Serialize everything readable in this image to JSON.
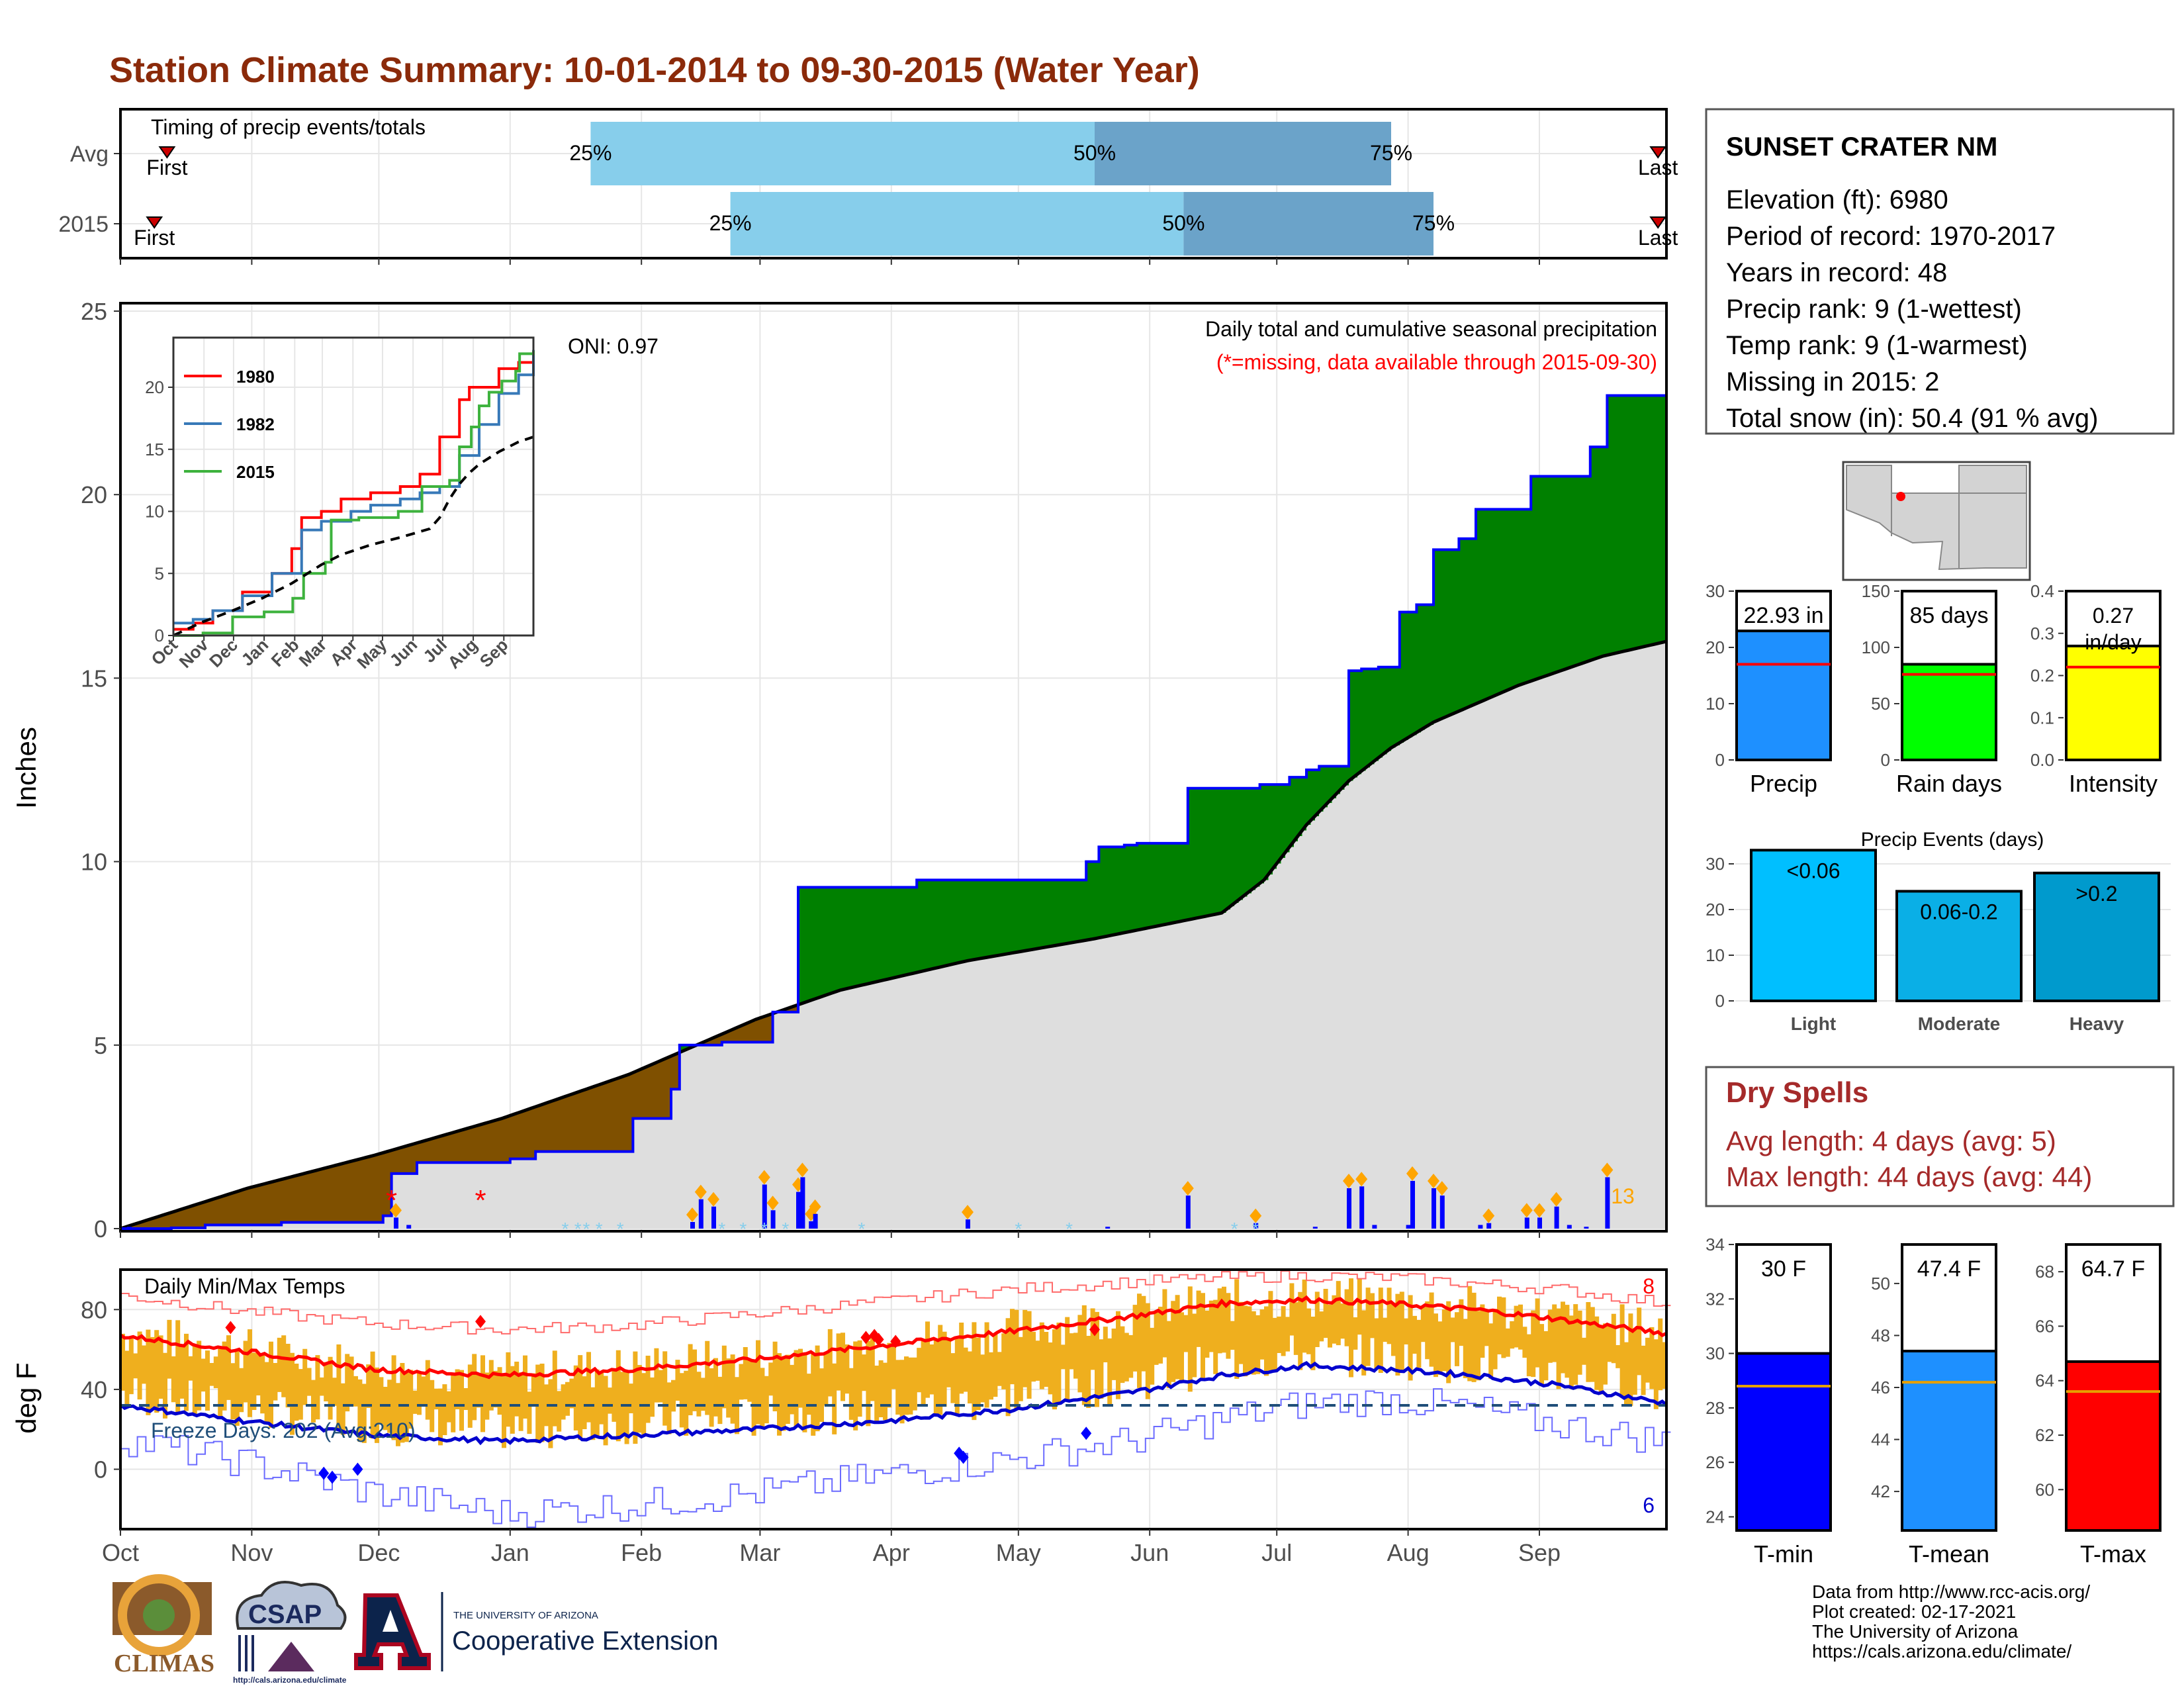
{
  "title": "Station Climate Summary: 10-01-2014 to 09-30-2015 (Water Year)",
  "colors": {
    "title": "#8B2A0A",
    "precip_light_bar": "#87CEEB",
    "precip_dark_bar": "#6BA3C9",
    "green_fill": "#008000",
    "brown_fill": "#7F5000",
    "avg_fill": "#DEDEDE",
    "blue_line": "#0000FF",
    "temp_bar": "#EFAF1E",
    "tmax_line": "#FF0000",
    "tmin_line": "#0000CD",
    "dry_spell_text": "#A52A2A",
    "missing": "#FF0000",
    "orange_marker": "#FFA500"
  },
  "timing_panel": {
    "label": "Timing of precip events/totals",
    "rows": [
      {
        "row_label": "Avg",
        "first_label": "First",
        "last_label": "Last",
        "p25_label": "25%",
        "p50_label": "50%",
        "p75_label": "75%",
        "first_doy": 11,
        "last_doy": 363,
        "p25_doy": 111,
        "p50_doy": 230,
        "p75_doy": 300
      },
      {
        "row_label": "2015",
        "first_label": "First",
        "last_label": "Last",
        "p25_label": "25%",
        "p50_label": "50%",
        "p75_label": "75%",
        "first_doy": 8,
        "last_doy": 363,
        "p25_doy": 144,
        "p50_doy": 251,
        "p75_doy": 310
      }
    ]
  },
  "station": {
    "name": "SUNSET CRATER NM",
    "lines": [
      "Elevation (ft): 6980",
      "Period of record: 1970-2017",
      "Years in record: 48",
      "Precip rank: 9 (1-wettest)",
      "Temp rank: 9 (1-warmest)",
      "Missing in 2015: 2",
      "Total snow (in): 50.4 (91 % avg)"
    ]
  },
  "chart_data": [
    {
      "id": "cumulative_precip",
      "type": "area",
      "ylabel": "Inches",
      "ylim": [
        0,
        25
      ],
      "yticks": [
        "0",
        "5",
        "10",
        "15",
        "20",
        "25"
      ],
      "annotation_title": "Daily total and cumulative seasonal precipitation",
      "annotation_missing": "(*=missing, data available through 2015-09-30)",
      "oni_label": "ONI: 0.97",
      "count_label": "13",
      "series": [
        {
          "name": "2015 cumulative",
          "x_doy": [
            0,
            12,
            20,
            38,
            62,
            64,
            70,
            92,
            98,
            121,
            130,
            132,
            137,
            142,
            154,
            160,
            176,
            188,
            210,
            228,
            231,
            237,
            240,
            242,
            252,
            269,
            276,
            280,
            283,
            290,
            293,
            297,
            302,
            306,
            310,
            316,
            320,
            330,
            333,
            347,
            351,
            365
          ],
          "y": [
            0,
            0.02,
            0.1,
            0.17,
            0.35,
            1.5,
            1.8,
            1.9,
            2.1,
            3.0,
            3.8,
            5.0,
            5.0,
            5.08,
            5.9,
            9.3,
            9.3,
            9.5,
            9.5,
            10.0,
            10.4,
            10.45,
            10.5,
            10.5,
            12.0,
            12.1,
            12.3,
            12.5,
            12.6,
            15.2,
            15.25,
            15.3,
            16.8,
            17.0,
            18.5,
            18.8,
            19.6,
            19.6,
            20.5,
            21.3,
            22.7,
            22.93
          ]
        },
        {
          "name": "Average cumulative",
          "x_doy": [
            0,
            30,
            60,
            90,
            120,
            150,
            170,
            200,
            230,
            260,
            270,
            280,
            290,
            300,
            310,
            320,
            330,
            340,
            350,
            365
          ],
          "y": [
            0,
            1.1,
            2.0,
            3.0,
            4.2,
            5.7,
            6.5,
            7.3,
            7.9,
            8.6,
            9.5,
            11.0,
            12.2,
            13.1,
            13.8,
            14.3,
            14.8,
            15.2,
            15.6,
            16.0
          ]
        }
      ],
      "daily_bars": {
        "x_doy": [
          2,
          4,
          15,
          65,
          68,
          135,
          137,
          140,
          152,
          154,
          160,
          161,
          163,
          164,
          200,
          233,
          252,
          268,
          282,
          290,
          293,
          296,
          304,
          305,
          310,
          312,
          321,
          323,
          332,
          335,
          339,
          342,
          346,
          351
        ],
        "y": [
          0.05,
          0.03,
          0.02,
          0.3,
          0.1,
          0.18,
          0.8,
          0.6,
          1.2,
          0.5,
          1.0,
          1.4,
          0.2,
          0.4,
          0.25,
          0.05,
          0.9,
          0.15,
          0.05,
          1.1,
          1.15,
          0.1,
          0.1,
          1.3,
          1.1,
          0.9,
          0.1,
          0.15,
          0.3,
          0.3,
          0.6,
          0.1,
          0.05,
          1.4
        ]
      },
      "missing_doy": [
        64,
        85
      ]
    },
    {
      "id": "inset_cumulative",
      "type": "line",
      "ylim": [
        0,
        24
      ],
      "yticks": [
        "0",
        "5",
        "10",
        "15",
        "20"
      ],
      "xticks": [
        "Oct",
        "Nov",
        "Dec",
        "Jan",
        "Feb",
        "Mar",
        "Apr",
        "May",
        "Jun",
        "Jul",
        "Aug",
        "Sep"
      ],
      "series": [
        {
          "name": "1980",
          "color": "#FF0000",
          "x_doy": [
            0,
            20,
            40,
            70,
            100,
            120,
            130,
            150,
            170,
            200,
            230,
            250,
            270,
            290,
            300,
            330,
            350,
            365
          ],
          "y": [
            0.5,
            1.0,
            2.0,
            3.5,
            5.0,
            7.0,
            9.5,
            10.0,
            11.0,
            11.5,
            12.0,
            13.0,
            16.0,
            19.0,
            20.0,
            21.5,
            22.0,
            22.0
          ]
        },
        {
          "name": "1982",
          "color": "#3779B8",
          "x_doy": [
            0,
            20,
            40,
            70,
            100,
            130,
            150,
            180,
            200,
            230,
            250,
            270,
            290,
            310,
            330,
            350,
            365
          ],
          "y": [
            1.0,
            1.3,
            2.0,
            3.2,
            5.0,
            8.5,
            9.2,
            10.0,
            10.5,
            11.0,
            11.5,
            12.0,
            14.5,
            17.0,
            19.5,
            21.0,
            23.0
          ]
        },
        {
          "name": "2015",
          "color": "#3DB23D",
          "x_doy": [
            0,
            30,
            60,
            92,
            121,
            132,
            154,
            160,
            188,
            228,
            252,
            280,
            290,
            302,
            310,
            320,
            333,
            347,
            351,
            365
          ],
          "y": [
            0,
            0.2,
            1.5,
            1.9,
            3.0,
            5.0,
            5.9,
            9.3,
            9.5,
            10.0,
            12.0,
            12.5,
            15.2,
            16.8,
            18.5,
            19.6,
            20.5,
            21.3,
            22.7,
            22.93
          ]
        },
        {
          "name": "Average",
          "color": "#000000",
          "x_doy": [
            0,
            30,
            60,
            90,
            120,
            150,
            170,
            200,
            230,
            260,
            270,
            280,
            290,
            300,
            310,
            320,
            330,
            340,
            350,
            365
          ],
          "y": [
            0,
            1.1,
            2.0,
            3.0,
            4.2,
            5.7,
            6.5,
            7.3,
            7.9,
            8.6,
            9.5,
            11.0,
            12.2,
            13.1,
            13.8,
            14.3,
            14.8,
            15.2,
            15.6,
            16.0
          ]
        }
      ]
    },
    {
      "id": "daily_temps",
      "type": "line",
      "ylabel": "deg F",
      "title": "Daily Min/Max Temps",
      "freeze_label": "Freeze Days: 202 (Avg:210)",
      "ylim": [
        -30,
        100
      ],
      "yticks": [
        "0",
        "40",
        "80"
      ],
      "count_high": "8",
      "count_low": "6",
      "freeze_threshold": 32,
      "avg_tmax": {
        "x_doy": [
          0,
          30,
          60,
          90,
          120,
          150,
          180,
          210,
          240,
          260,
          280,
          300,
          320,
          340,
          365
        ],
        "y": [
          67,
          59,
          50,
          47,
          50,
          55,
          62,
          69,
          77,
          83,
          85,
          83,
          80,
          75,
          68
        ]
      },
      "avg_tmin": {
        "x_doy": [
          0,
          30,
          60,
          90,
          120,
          150,
          180,
          210,
          240,
          260,
          280,
          300,
          320,
          340,
          365
        ],
        "y": [
          32,
          24,
          17,
          14,
          17,
          20,
          24,
          30,
          39,
          47,
          52,
          50,
          47,
          42,
          33
        ]
      },
      "record_high": {
        "x_doy": [
          0,
          30,
          60,
          90,
          120,
          150,
          180,
          210,
          240,
          260,
          280,
          300,
          320,
          340,
          365
        ],
        "y": [
          87,
          79,
          73,
          70,
          72,
          78,
          84,
          90,
          94,
          96,
          97,
          96,
          93,
          90,
          83
        ]
      },
      "record_low": {
        "x_doy": [
          0,
          30,
          60,
          90,
          120,
          150,
          180,
          210,
          240,
          260,
          280,
          300,
          320,
          340,
          365
        ],
        "y": [
          15,
          3,
          -12,
          -22,
          -18,
          -12,
          -3,
          5,
          15,
          25,
          33,
          35,
          30,
          22,
          14
        ]
      },
      "xticks": [
        "Oct",
        "Nov",
        "Dec",
        "Jan",
        "Feb",
        "Mar",
        "Apr",
        "May",
        "Jun",
        "Jul",
        "Aug",
        "Sep"
      ]
    },
    {
      "id": "precip_total",
      "type": "bar",
      "xlabel": "Precip",
      "ylim": [
        0,
        30
      ],
      "yticks": [
        "0",
        "10",
        "20",
        "30"
      ],
      "value": 22.93,
      "avg": 17.0,
      "value_label": "22.93 in",
      "color": "#1E90FF"
    },
    {
      "id": "rain_days",
      "type": "bar",
      "xlabel": "Rain days",
      "ylim": [
        0,
        150
      ],
      "yticks": [
        "0",
        "50",
        "100",
        "150"
      ],
      "value": 85,
      "avg": 76,
      "value_label": "85 days",
      "color": "#00FF00"
    },
    {
      "id": "intensity",
      "type": "bar",
      "xlabel": "Intensity",
      "ylim": [
        0,
        0.4
      ],
      "yticks": [
        "0.0",
        "0.1",
        "0.2",
        "0.3",
        "0.4"
      ],
      "value": 0.27,
      "avg": 0.22,
      "value_label_1": "0.27",
      "value_label_2": "in/day",
      "color": "#FFFF00"
    },
    {
      "id": "precip_events",
      "type": "bar",
      "title": "Precip Events (days)",
      "ylim": [
        0,
        30
      ],
      "yticks": [
        "0",
        "10",
        "20",
        "30"
      ],
      "categories": [
        "Light",
        "Moderate",
        "Heavy"
      ],
      "bar_labels": [
        "<0.06",
        "0.06-0.2",
        ">0.2"
      ],
      "values": [
        33,
        24,
        28
      ],
      "colors": [
        "#00BFFF",
        "#0AAFE6",
        "#009ACD"
      ]
    },
    {
      "id": "tmin",
      "type": "bar",
      "xlabel": "T-min",
      "ylim": [
        23.5,
        34
      ],
      "yticks": [
        "24",
        "26",
        "28",
        "30",
        "32",
        "34"
      ],
      "value": 30.0,
      "avg": 28.8,
      "value_label": "30 F",
      "color": "#0000FF"
    },
    {
      "id": "tmean",
      "type": "bar",
      "xlabel": "T-mean",
      "ylim": [
        40.5,
        51.5
      ],
      "yticks": [
        "42",
        "44",
        "46",
        "48",
        "50"
      ],
      "value": 47.4,
      "avg": 46.2,
      "value_label": "47.4 F",
      "color": "#1E90FF"
    },
    {
      "id": "tmax",
      "type": "bar",
      "xlabel": "T-max",
      "ylim": [
        58.5,
        69
      ],
      "yticks": [
        "60",
        "62",
        "64",
        "66",
        "68"
      ],
      "value": 64.7,
      "avg": 63.6,
      "value_label": "64.7 F",
      "color": "#FF0000"
    }
  ],
  "dry_spells": {
    "title": "Dry Spells",
    "avg_line": "Avg length: 4 days (avg: 5)",
    "max_line": "Max length: 44 days (avg: 44)"
  },
  "logos": {
    "climas": "CLIMAS",
    "csap": "CSAP",
    "csap_url": "http://cals.arizona.edu/climate",
    "ua_small": "THE UNIVERSITY OF ARIZONA",
    "ua_big": "Cooperative Extension"
  },
  "credits": [
    "Data from http://www.rcc-acis.org/",
    "Plot created: 02-17-2021",
    "The University of Arizona",
    "https://cals.arizona.edu/climate/"
  ]
}
